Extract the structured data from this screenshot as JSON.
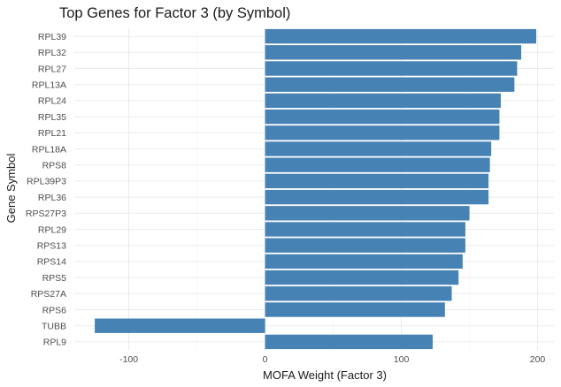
{
  "chart_data": {
    "type": "bar",
    "orientation": "horizontal",
    "title": "Top Genes for Factor 3 (by Symbol)",
    "xlabel": "MOFA Weight (Factor 3)",
    "ylabel": "Gene Symbol",
    "xlim": [
      -140,
      212
    ],
    "xticks": [
      -100,
      0,
      100,
      200
    ],
    "x_tick_labels": [
      "-100",
      "0",
      "100",
      "200"
    ],
    "grid": true,
    "bar_color": "#4682b4",
    "categories": [
      "RPL39",
      "RPL32",
      "RPL27",
      "RPL13A",
      "RPL24",
      "RPL35",
      "RPL21",
      "RPL18A",
      "RPS8",
      "RPL39P3",
      "RPL36",
      "RPS27P3",
      "RPL29",
      "RPS13",
      "RPS14",
      "RPS5",
      "RPS27A",
      "RPS6",
      "TUBB",
      "RPL9"
    ],
    "values": [
      199,
      188,
      185,
      183,
      173,
      172,
      172,
      166,
      165,
      164,
      164,
      150,
      147,
      147,
      145,
      142,
      137,
      132,
      -125,
      123
    ]
  }
}
